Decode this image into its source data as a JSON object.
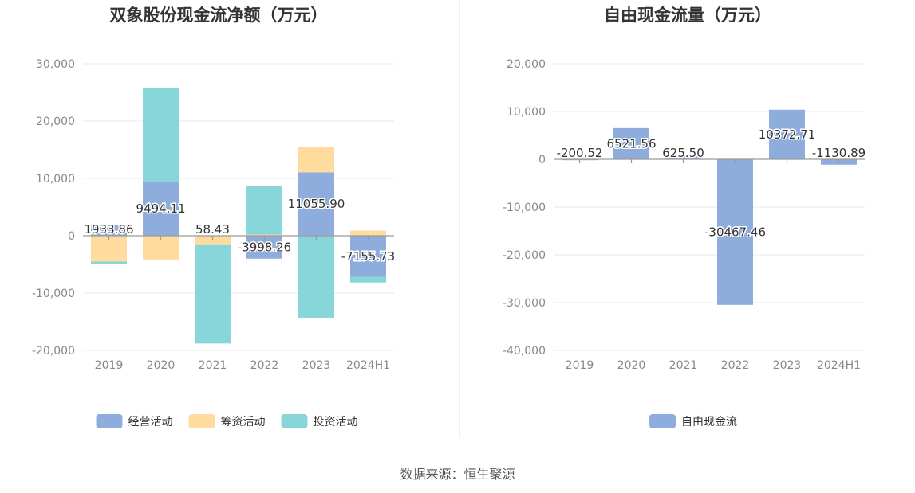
{
  "source": "数据来源：恒生聚源",
  "colors": {
    "operating": "#8eaddc",
    "financing": "#ffdb9e",
    "investing": "#87d6d9",
    "free": "#8eaddc"
  },
  "chart_data": [
    {
      "type": "bar",
      "stacked": true,
      "title": "双象股份现金流净额（万元）",
      "categories": [
        "2019",
        "2020",
        "2021",
        "2022",
        "2023",
        "2024H1"
      ],
      "ylim": [
        -20000,
        30000
      ],
      "yticks": [
        30000,
        20000,
        10000,
        0,
        -10000,
        -20000
      ],
      "ytick_labels": [
        "30,000",
        "20,000",
        "10,000",
        "0",
        "-10,000",
        "-20,000"
      ],
      "grid": true,
      "legend": "bottom-center",
      "series": [
        {
          "name": "经营活动",
          "values": [
            1933.86,
            9494.11,
            58.43,
            -3998.26,
            11055.9,
            -7155.73
          ],
          "labels": [
            "1933.86",
            "9494.11",
            "58.43",
            "-3998.26",
            "11055.90",
            "-7155.73"
          ]
        },
        {
          "name": "筹资活动",
          "values": [
            -4500,
            -4300,
            -1500,
            200,
            4500,
            900
          ]
        },
        {
          "name": "投资活动",
          "values": [
            -500,
            16300,
            -17300,
            8500,
            -14300,
            -1000
          ]
        }
      ]
    },
    {
      "type": "bar",
      "title": "自由现金流量（万元）",
      "categories": [
        "2019",
        "2020",
        "2021",
        "2022",
        "2023",
        "2024H1"
      ],
      "ylim": [
        -40000,
        20000
      ],
      "yticks": [
        20000,
        10000,
        0,
        -10000,
        -20000,
        -30000,
        -40000
      ],
      "ytick_labels": [
        "20,000",
        "10,000",
        "0",
        "-10,000",
        "-20,000",
        "-30,000",
        "-40,000"
      ],
      "grid": true,
      "legend": "bottom-center",
      "series": [
        {
          "name": "自由现金流",
          "values": [
            -200.52,
            6521.56,
            625.5,
            -30467.46,
            10372.71,
            -1130.89
          ],
          "labels": [
            "-200.52",
            "6521.56",
            "625.50",
            "-30467.46",
            "10372.71",
            "-1130.89"
          ]
        }
      ]
    }
  ]
}
